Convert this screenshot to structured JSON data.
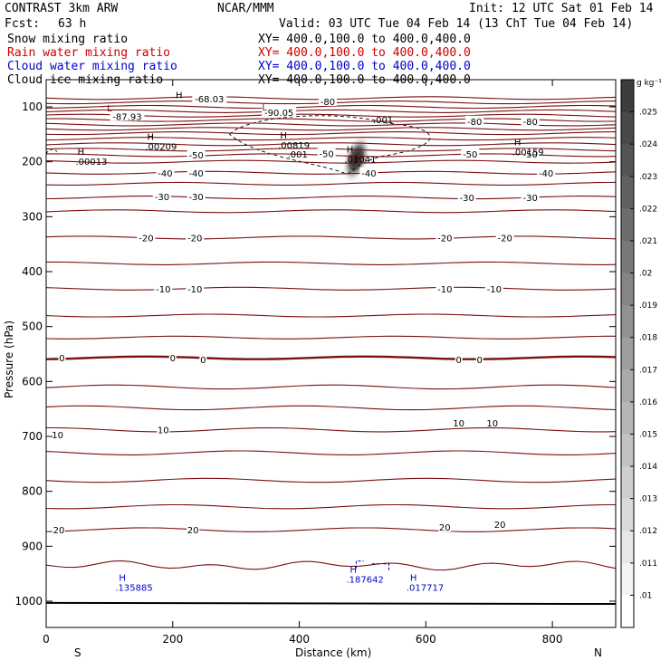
{
  "header": {
    "title": "CONTRAST  3km ARW",
    "center": "NCAR/MMM",
    "init": "Init: 12 UTC Sat 01 Feb 14",
    "fcst_label": "Fcst:",
    "fcst_value": "63 h",
    "valid": "Valid: 03 UTC Tue 04 Feb 14 (13 ChT Tue 04 Feb 14)"
  },
  "fields": [
    {
      "name": "Snow mixing ratio",
      "xy": "XY= 400.0,100.0 to 400.0,400.0",
      "color": "#000000"
    },
    {
      "name": "Rain water mixing ratio",
      "xy": "XY= 400.0,100.0 to 400.0,400.0",
      "color": "#cc0000"
    },
    {
      "name": "Cloud water mixing ratio",
      "xy": "XY= 400.0,100.0 to 400.0,400.0",
      "color": "#0000cc"
    },
    {
      "name": "Cloud ice mixing ratio",
      "xy": "XY= 400.0,100.0 to 400.0,400.0",
      "color": "#000000"
    }
  ],
  "chart_data": {
    "type": "contour",
    "xlabel": "Distance (km)",
    "ylabel": "Pressure (hPa)",
    "xlim": [
      0,
      900
    ],
    "ylim": [
      1050,
      70
    ],
    "xticks": [
      0,
      200,
      400,
      600,
      800
    ],
    "yticks": [
      100,
      200,
      300,
      400,
      500,
      600,
      700,
      800,
      900,
      1000
    ],
    "x_end_labels": [
      "S",
      "N"
    ],
    "colorbar": {
      "unit": "g kg⁻¹",
      "ticks": [
        ".025",
        ".024",
        ".023",
        ".022",
        ".021",
        ".02",
        ".019",
        ".018",
        ".017",
        ".016",
        ".015",
        ".014",
        ".013",
        ".012",
        ".011",
        ".01"
      ]
    },
    "temperature_labels": [
      {
        "text": "-68.03",
        "x": 258,
        "p": 85
      },
      {
        "text": "-87.93",
        "x": 128,
        "p": 117
      },
      {
        "text": "-90.05",
        "x": 368,
        "p": 110
      },
      {
        "text": "-80",
        "x": 445,
        "p": 90
      },
      {
        "text": "-80",
        "x": 677,
        "p": 126
      },
      {
        "text": "-80",
        "x": 765,
        "p": 126
      },
      {
        "text": "-50",
        "x": 237,
        "p": 187
      },
      {
        "text": "-50",
        "x": 443,
        "p": 185
      },
      {
        "text": "-50",
        "x": 670,
        "p": 186
      },
      {
        "text": "-50",
        "x": 765,
        "p": 186
      },
      {
        "text": "-40",
        "x": 188,
        "p": 220
      },
      {
        "text": "-40",
        "x": 237,
        "p": 220
      },
      {
        "text": "-40",
        "x": 510,
        "p": 220
      },
      {
        "text": "-40",
        "x": 790,
        "p": 220
      },
      {
        "text": "-30",
        "x": 183,
        "p": 263
      },
      {
        "text": "-30",
        "x": 237,
        "p": 263
      },
      {
        "text": "-30",
        "x": 665,
        "p": 265
      },
      {
        "text": "-30",
        "x": 765,
        "p": 265
      },
      {
        "text": "-20",
        "x": 158,
        "p": 338
      },
      {
        "text": "-20",
        "x": 235,
        "p": 338
      },
      {
        "text": "-20",
        "x": 630,
        "p": 338
      },
      {
        "text": "-20",
        "x": 725,
        "p": 338
      },
      {
        "text": "-10",
        "x": 185,
        "p": 431
      },
      {
        "text": "-10",
        "x": 235,
        "p": 431
      },
      {
        "text": "-10",
        "x": 630,
        "p": 431
      },
      {
        "text": "-10",
        "x": 708,
        "p": 431
      },
      {
        "text": "0",
        "x": 25,
        "p": 557
      },
      {
        "text": "0",
        "x": 200,
        "p": 557
      },
      {
        "text": "0",
        "x": 248,
        "p": 560
      },
      {
        "text": "0",
        "x": 652,
        "p": 560
      },
      {
        "text": "0",
        "x": 685,
        "p": 560
      },
      {
        "text": "10",
        "x": 18,
        "p": 697
      },
      {
        "text": "10",
        "x": 185,
        "p": 688
      },
      {
        "text": "10",
        "x": 652,
        "p": 675
      },
      {
        "text": "10",
        "x": 705,
        "p": 675
      },
      {
        "text": "20",
        "x": 20,
        "p": 870
      },
      {
        "text": "20",
        "x": 232,
        "p": 870
      },
      {
        "text": "20",
        "x": 630,
        "p": 865
      },
      {
        "text": "20",
        "x": 717,
        "p": 860
      }
    ],
    "contour_levels_p": [
      84,
      92,
      100,
      108,
      116,
      124,
      132,
      140,
      148,
      158,
      168,
      178,
      188,
      200,
      220,
      240,
      265,
      290,
      338,
      385,
      431,
      480,
      520,
      557,
      610,
      648,
      688,
      730,
      780,
      828,
      870,
      935
    ],
    "maxima_labels": [
      {
        "mark": "L",
        "value": "",
        "x": 100,
        "p": 108
      },
      {
        "mark": "H",
        "value": "",
        "x": 210,
        "p": 84
      },
      {
        "mark": "L",
        "value": "",
        "x": 345,
        "p": 107
      },
      {
        "mark": "H",
        "value": ".00209",
        "x": 165,
        "p": 160
      },
      {
        "mark": "H",
        "value": ".00819",
        "x": 375,
        "p": 158
      },
      {
        "mark": "H",
        "value": ".01041",
        "x": 480,
        "p": 183
      },
      {
        "mark": "H",
        "value": ".00013",
        "x": 55,
        "p": 187
      },
      {
        "mark": "H",
        "value": ".00159",
        "x": 745,
        "p": 170
      },
      {
        "mark": "",
        "value": ".001",
        "x": 525,
        "p": 130
      },
      {
        "mark": "",
        "value": ".001",
        "x": 390,
        "p": 192
      }
    ],
    "cloud_water_labels": [
      {
        "mark": "H",
        "value": ".135885",
        "x": 115,
        "p": 963
      },
      {
        "mark": "H",
        "value": ".187642",
        "x": 480,
        "p": 948
      },
      {
        "mark": "H",
        "value": ".017717",
        "x": 575,
        "p": 963
      }
    ]
  }
}
